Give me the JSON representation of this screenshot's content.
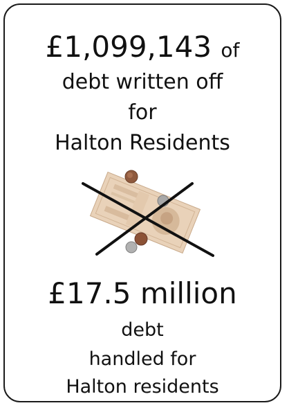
{
  "written_off": {
    "amount": "£1,099,143",
    "of": "of",
    "line2": "debt written off",
    "line3": "for",
    "line4": "Halton Residents"
  },
  "handled": {
    "amount": "£17.5 million",
    "line2": "debt",
    "line3": "handled for",
    "line4": "Halton residents"
  },
  "image": {
    "subject": "crossed-out-money-icon"
  }
}
